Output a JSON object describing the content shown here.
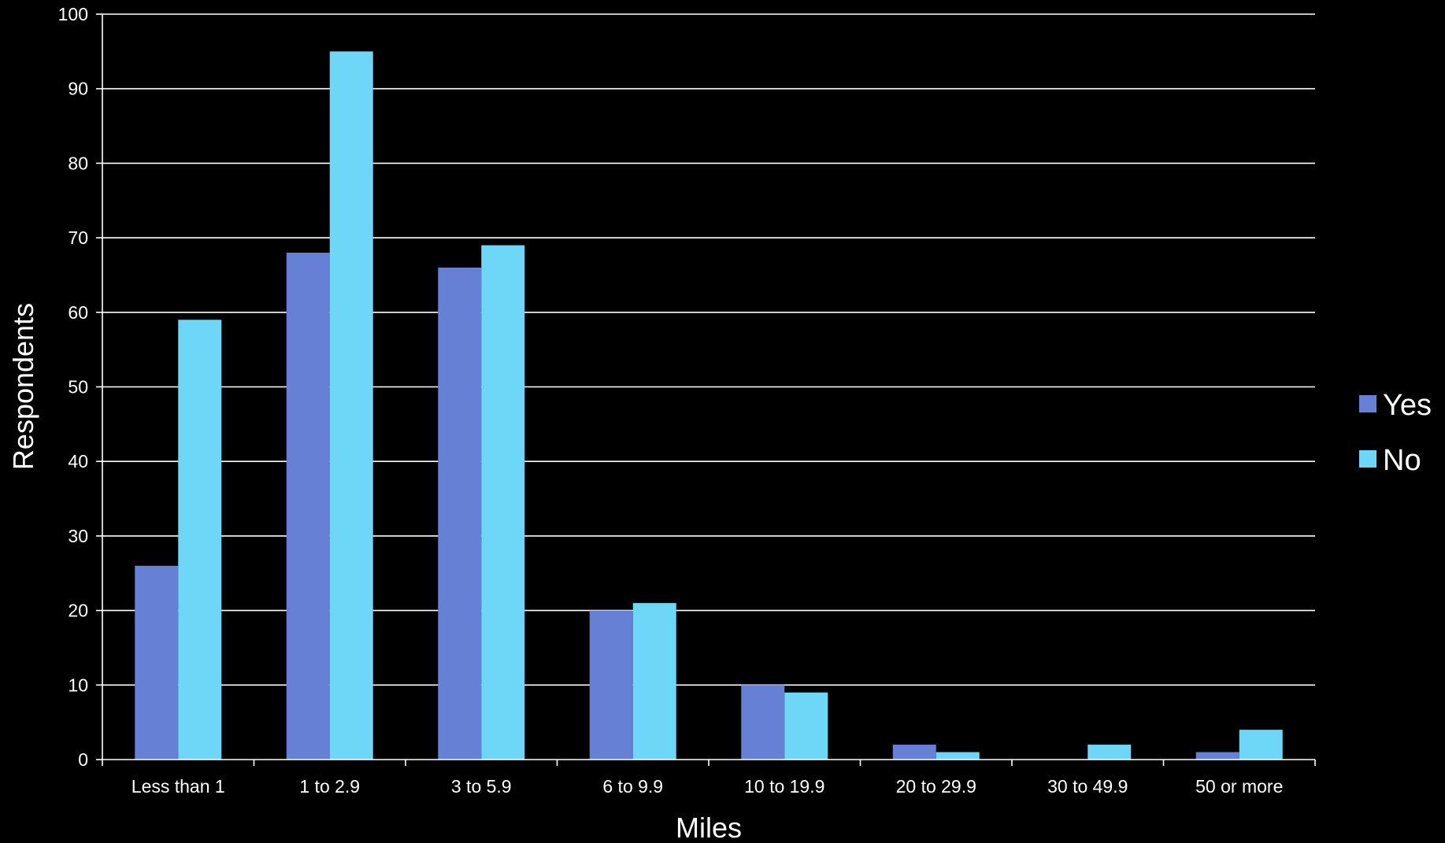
{
  "chart_data": {
    "type": "bar",
    "title": "",
    "xlabel": "Miles",
    "ylabel": "Respondents",
    "ylim": [
      0,
      100
    ],
    "yticks": [
      0,
      10,
      20,
      30,
      40,
      50,
      60,
      70,
      80,
      90,
      100
    ],
    "grid": true,
    "legend_position": "right",
    "categories": [
      "Less than 1",
      "1 to 2.9",
      "3 to 5.9",
      "6 to 9.9",
      "10 to 19.9",
      "20 to 29.9",
      "30 to 49.9",
      "50 or more"
    ],
    "series": [
      {
        "name": "Yes",
        "color": "#6680d6",
        "values": [
          26,
          68,
          66,
          20,
          10,
          2,
          0,
          1
        ]
      },
      {
        "name": "No",
        "color": "#6ed6f7",
        "values": [
          59,
          95,
          69,
          21,
          9,
          1,
          2,
          4
        ]
      }
    ],
    "colors": {
      "background": "#000000",
      "text": "#ffffff",
      "grid": "#ffffff",
      "axis": "#ffffff"
    }
  }
}
